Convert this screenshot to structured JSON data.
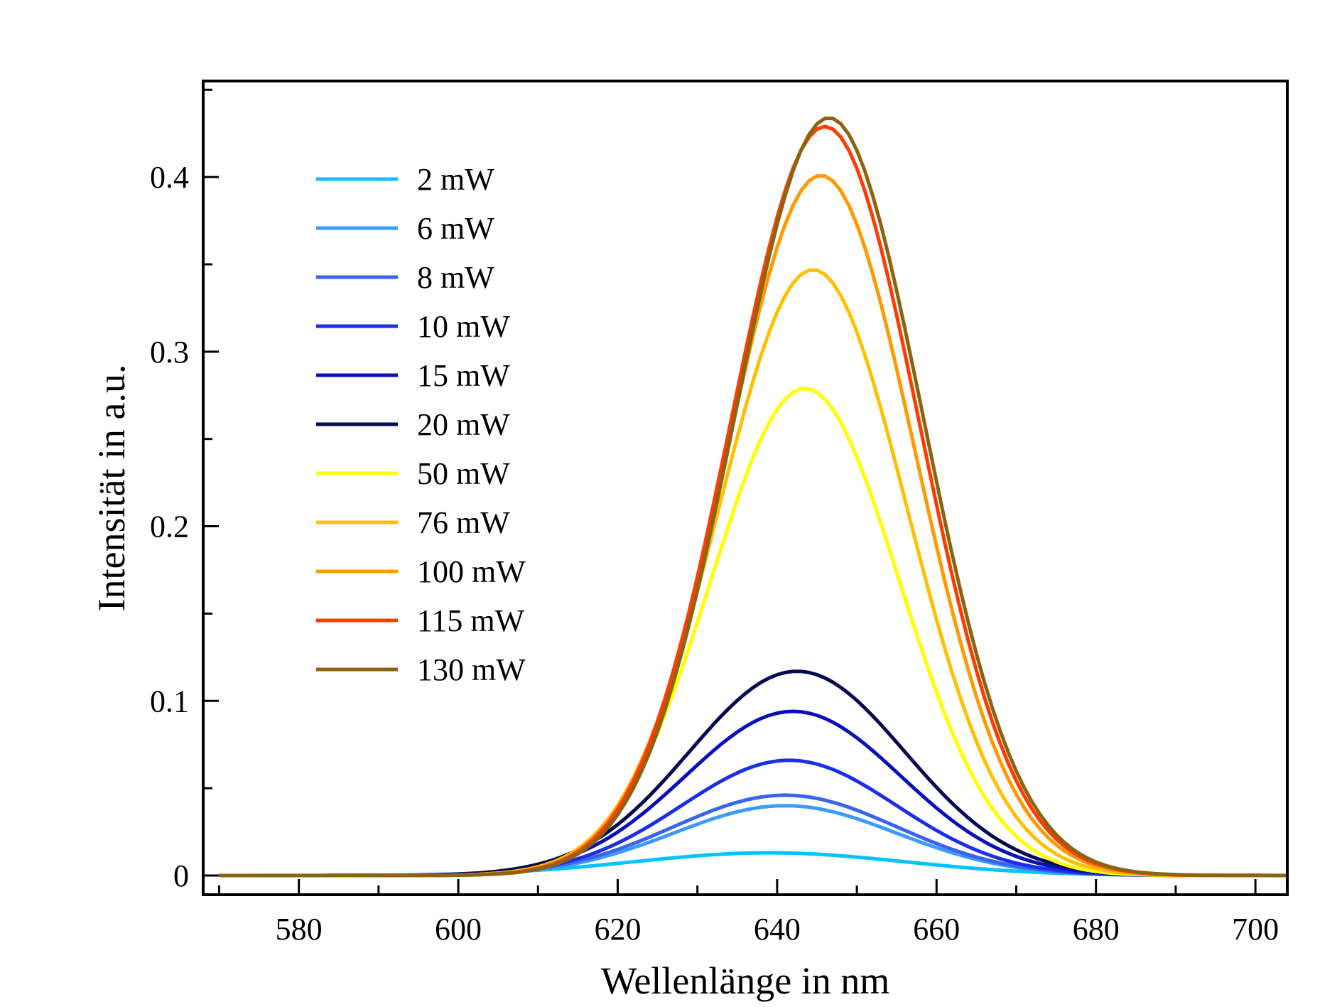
{
  "chart_data": {
    "type": "line",
    "title": "",
    "xlabel": "Wellenlänge in nm",
    "ylabel": "Intensität in a.u.",
    "xlim": [
      568,
      704
    ],
    "ylim": [
      -0.011,
      0.455
    ],
    "xticks": [
      580,
      600,
      620,
      640,
      660,
      680,
      700
    ],
    "xtick_labels": [
      "580",
      "600",
      "620",
      "640",
      "660",
      "680",
      "700"
    ],
    "xminor_step": 10,
    "yticks": [
      0,
      0.1,
      0.2,
      0.3,
      0.4
    ],
    "ytick_labels": [
      "0",
      "0.1",
      "0.2",
      "0.3",
      "0.4"
    ],
    "yminor_step": 0.05,
    "grid": false,
    "legend_position": "top-left",
    "x_sampling": {
      "start": 570,
      "end": 704,
      "step": 1
    },
    "series": [
      {
        "name": "2 mW",
        "color": "#00c3ff",
        "peak_x": 639,
        "peak_y": 0.013,
        "sigma": 17.0
      },
      {
        "name": "6 mW",
        "color": "#3d9bff",
        "peak_x": 641,
        "peak_y": 0.04,
        "sigma": 14.0
      },
      {
        "name": "8 mW",
        "color": "#3a63f0",
        "peak_x": 641,
        "peak_y": 0.046,
        "sigma": 14.0
      },
      {
        "name": "10 mW",
        "color": "#1a2fe6",
        "peak_x": 641.5,
        "peak_y": 0.066,
        "sigma": 13.5
      },
      {
        "name": "15 mW",
        "color": "#0a10b8",
        "peak_x": 642,
        "peak_y": 0.094,
        "sigma": 13.5
      },
      {
        "name": "20 mW",
        "color": "#050a50",
        "peak_x": 642.5,
        "peak_y": 0.117,
        "sigma": 13.5
      },
      {
        "name": "50 mW",
        "color": "#ffff00",
        "peak_x": 643.5,
        "peak_y": 0.279,
        "sigma": 11.8
      },
      {
        "name": "76 mW",
        "color": "#ffc000",
        "peak_x": 644.5,
        "peak_y": 0.347,
        "sigma": 11.8
      },
      {
        "name": "100 mW",
        "color": "#ff9a00",
        "peak_x": 645.5,
        "peak_y": 0.401,
        "sigma": 11.8
      },
      {
        "name": "115 mW",
        "color": "#ff3c00",
        "peak_x": 646,
        "peak_y": 0.429,
        "sigma": 11.8
      },
      {
        "name": "130 mW",
        "color": "#8b6410",
        "peak_x": 646.5,
        "peak_y": 0.434,
        "sigma": 11.8
      }
    ]
  }
}
